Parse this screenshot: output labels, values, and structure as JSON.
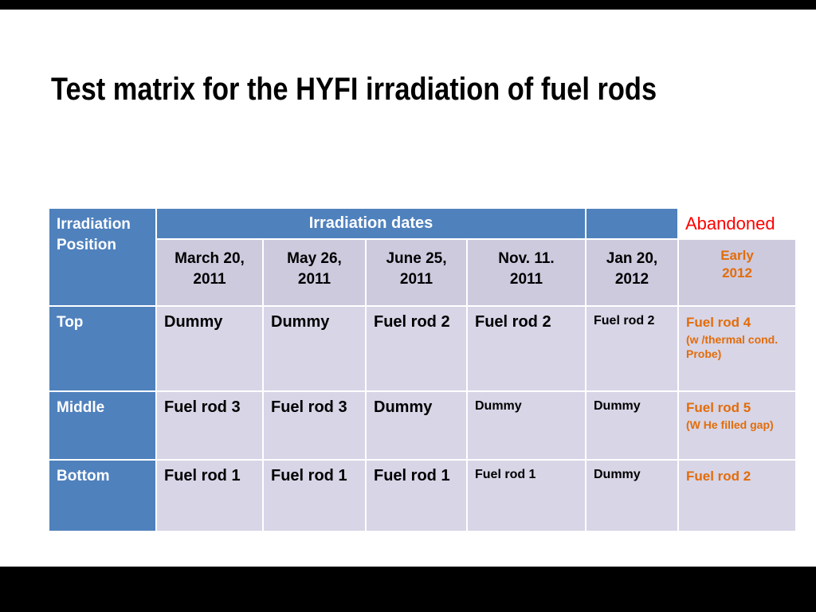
{
  "slide": {
    "title": "Test matrix for the HYFI irradiation of fuel rods"
  },
  "table": {
    "corner": "Irradiation\nPosition",
    "dates_group": "Irradiation dates",
    "abandoned": "Abandoned",
    "date_columns": [
      "March 20,\n2011",
      "May 26,\n2011",
      "June 25,\n2011",
      "Nov.  11.\n2011",
      "Jan 20,\n2012"
    ],
    "early_header": "Early\n2012",
    "rows": [
      {
        "label": "Top",
        "cells": [
          "Dummy",
          "Dummy",
          "Fuel rod 2",
          "Fuel rod 2",
          "Fuel rod 2"
        ],
        "final": {
          "main": "Fuel rod 4",
          "note": "(w /thermal cond. Probe)"
        }
      },
      {
        "label": "Middle",
        "cells": [
          "Fuel rod 3",
          "Fuel rod 3",
          "Dummy",
          "Dummy",
          "Dummy"
        ],
        "final": {
          "main": "Fuel rod 5",
          "note": "(W He filled gap)"
        }
      },
      {
        "label": "Bottom",
        "cells": [
          "Fuel rod 1",
          "Fuel rod 1",
          "Fuel rod 1",
          "Fuel rod 1",
          "Dummy"
        ],
        "final": {
          "main": "Fuel rod 2",
          "note": ""
        }
      }
    ]
  },
  "colors": {
    "header_blue": "#4F81BD",
    "band_lavender": "#D7D5E6",
    "date_row_lavender": "#CDCADE",
    "accent_orange": "#E36C09",
    "abandoned_red": "#FF0000"
  }
}
